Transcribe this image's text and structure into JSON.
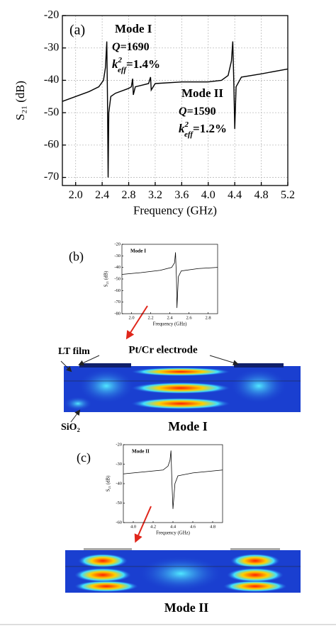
{
  "chart_data": [
    {
      "type": "line",
      "panel": "(a)",
      "x_label": "Frequency (GHz)",
      "y_label": "S₂₁ (dB)",
      "xlim": [
        1.8,
        5.2
      ],
      "xticks": [
        {
          "value": 2,
          "label": "2.0"
        },
        2.4,
        2.8,
        3.2,
        3.6,
        {
          "value": 4,
          "label": "4.0"
        },
        4.4,
        4.8,
        5.2
      ],
      "ylim": [
        -72.5,
        -20
      ],
      "yticks": [
        -20,
        -30,
        -40,
        -50,
        -60,
        -70
      ],
      "grid": true,
      "color": "#000000",
      "x": [
        1.8,
        2.0,
        2.2,
        2.35,
        2.42,
        2.45,
        2.47,
        2.48,
        2.49,
        2.5,
        2.53,
        2.6,
        2.8,
        2.84,
        2.86,
        2.87,
        2.9,
        3.0,
        3.1,
        3.13,
        3.14,
        3.2,
        3.6,
        4.0,
        4.2,
        4.3,
        4.35,
        4.37,
        4.385,
        4.4,
        4.42,
        4.5,
        4.8,
        5.2
      ],
      "values": [
        -46.5,
        -45,
        -43.5,
        -42,
        -40,
        -36,
        -28,
        -45,
        -70,
        -50,
        -45,
        -44,
        -42.5,
        -42,
        -39.5,
        -44.5,
        -42,
        -41.5,
        -41,
        -39,
        -43,
        -41,
        -40.5,
        -40.5,
        -40,
        -38.5,
        -34,
        -28,
        -40,
        -55,
        -42,
        -39,
        -38,
        -36.5
      ],
      "annotations": [
        {
          "title": "Mode I",
          "q": "Q",
          "q_value": "=1690",
          "k": "k",
          "k_sup": "2",
          "k_sub": "eff",
          "k_value": "=1.4%"
        },
        {
          "title": "Mode II",
          "q": "Q",
          "q_value": "=1590",
          "k": "k",
          "k_sup": "2",
          "k_sub": "eff",
          "k_value": "=1.2%"
        }
      ]
    },
    {
      "type": "line",
      "panel": "(b)",
      "title": "Mode I",
      "x_label": "Frequency (GHz)",
      "y_label": "S₂₁ (dB)",
      "xlim": [
        1.9,
        2.9
      ],
      "xticks": [
        {
          "value": 2,
          "label": "2.0"
        },
        2.2,
        2.4,
        2.6,
        2.8
      ],
      "ylim": [
        -80,
        -20
      ],
      "yticks": [
        -20,
        -30,
        -40,
        -50,
        -60,
        -70,
        -80
      ],
      "grid": false,
      "color": "#000000",
      "x": [
        1.9,
        2.1,
        2.3,
        2.42,
        2.45,
        2.46,
        2.47,
        2.475,
        2.49,
        2.52,
        2.7,
        2.9
      ],
      "values": [
        -46,
        -44.5,
        -42.5,
        -40,
        -36,
        -27,
        -50,
        -75,
        -48,
        -43,
        -41,
        -40
      ]
    },
    {
      "type": "line",
      "panel": "(c)",
      "title": "Mode II",
      "x_label": "Frequency (GHz)",
      "y_label": "S₂₁ (dB)",
      "xlim": [
        3.9,
        4.9
      ],
      "xticks": [
        {
          "value": 4,
          "label": "4.0"
        },
        4.2,
        4.4,
        4.6,
        4.8
      ],
      "ylim": [
        -60,
        -20
      ],
      "yticks": [
        -20,
        -30,
        -40,
        -50,
        -60
      ],
      "grid": false,
      "color": "#000000",
      "x": [
        3.9,
        4.1,
        4.3,
        4.35,
        4.37,
        4.38,
        4.39,
        4.4,
        4.42,
        4.45,
        4.6,
        4.9
      ],
      "values": [
        -35,
        -34,
        -33,
        -31,
        -28,
        -23,
        -40,
        -53,
        -40,
        -36,
        -34.5,
        -33
      ]
    }
  ],
  "figure": {
    "lt_film": "LT film",
    "electrode": "Pt/Cr electrode",
    "sio2": "SiO₂",
    "mode_b": "Mode I",
    "mode_c": "Mode II"
  }
}
